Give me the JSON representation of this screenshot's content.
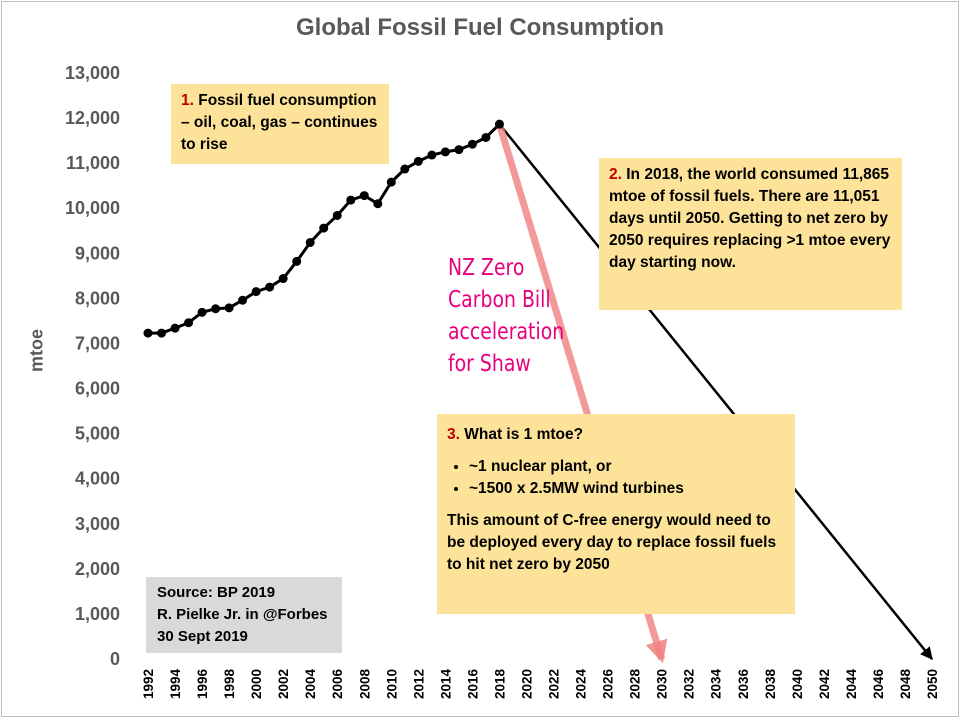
{
  "chart_data": {
    "type": "line",
    "title": "Global Fossil Fuel Consumption",
    "ylabel": "mtoe",
    "xlabel": "",
    "xlim": [
      1992,
      2050
    ],
    "ylim": [
      0,
      13000
    ],
    "y_ticks": [
      "0",
      "1,000",
      "2,000",
      "3,000",
      "4,000",
      "5,000",
      "6,000",
      "7,000",
      "8,000",
      "9,000",
      "10,000",
      "11,000",
      "12,000",
      "13,000"
    ],
    "x_ticks": [
      "1992",
      "1994",
      "1996",
      "1998",
      "2000",
      "2002",
      "2004",
      "2006",
      "2008",
      "2010",
      "2012",
      "2014",
      "2016",
      "2018",
      "2020",
      "2022",
      "2024",
      "2026",
      "2028",
      "2030",
      "2032",
      "2034",
      "2036",
      "2038",
      "2040",
      "2042",
      "2044",
      "2046",
      "2048",
      "2050"
    ],
    "grid": false,
    "series": [
      {
        "x": [
          1992,
          1993,
          1994,
          1995,
          1996,
          1997,
          1998,
          1999,
          2000,
          2001,
          2002,
          2003,
          2004,
          2005,
          2006,
          2007,
          2008,
          2009,
          2010,
          2011,
          2012,
          2013,
          2014,
          2015,
          2016,
          2017,
          2018
        ],
        "values": [
          7230,
          7230,
          7340,
          7460,
          7690,
          7770,
          7790,
          7960,
          8150,
          8250,
          8440,
          8820,
          9240,
          9560,
          9840,
          10180,
          10280,
          10100,
          10580,
          10870,
          11040,
          11180,
          11250,
          11300,
          11420,
          11570,
          11865
        ]
      }
    ],
    "arrows": [
      {
        "color": "#000000",
        "from": [
          2018,
          11865
        ],
        "to": [
          2050,
          0
        ]
      },
      {
        "color": "#f08080",
        "from": [
          2018,
          11865
        ],
        "to": [
          2030,
          0
        ]
      }
    ],
    "colors": {
      "line": "#000000",
      "note_bg": "#fde39a",
      "source_bg": "#d9d9d9",
      "accent_red": "#c00000",
      "nz_text": "#e6007e",
      "axis_text": "#595959"
    }
  },
  "annotations": {
    "note1": {
      "num": "1.",
      "text": "Fossil fuel consumption – oil, coal, gas – continues to rise"
    },
    "note2": {
      "num": "2.",
      "text": "In 2018, the world consumed 11,865 mtoe of fossil fuels.  There are 11,051 days until 2050. Getting to net zero by 2050 requires replacing >1 mtoe every day starting now."
    },
    "note3": {
      "num": "3.",
      "heading": "What is 1 mtoe?",
      "bullets": [
        "~1 nuclear plant, or",
        "~1500 x 2.5MW wind turbines"
      ],
      "footer": "This amount of C-free energy would need to be deployed every day to replace fossil fuels to hit net zero by 2050"
    },
    "nz_label": [
      "NZ Zero",
      "Carbon Bill",
      "acceleration",
      "for Shaw"
    ],
    "source": [
      "Source: BP 2019",
      "R. Pielke Jr. in @Forbes",
      "30 Sept 2019"
    ]
  }
}
